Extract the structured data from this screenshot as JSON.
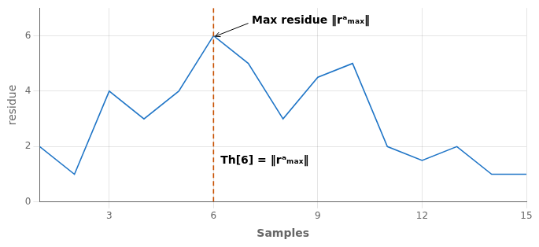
{
  "chart_data": {
    "type": "line",
    "x_label": "Samples",
    "y_label": "residue",
    "x": [
      1,
      2,
      3,
      4,
      5,
      6,
      7,
      8,
      9,
      10,
      11,
      12,
      13,
      14,
      15
    ],
    "values": [
      2,
      1,
      4,
      3,
      4,
      6,
      5,
      3,
      4.5,
      5,
      2,
      1.5,
      2,
      1,
      1
    ],
    "color": "#2176c7",
    "xlim": [
      1,
      15
    ],
    "ylim": [
      0,
      7
    ],
    "xticks": [
      3,
      6,
      9,
      12,
      15
    ],
    "yticks": [
      0,
      2,
      4,
      6
    ],
    "grid": true,
    "vlines": [
      {
        "x": 6,
        "color": "#c85000",
        "line_style": "dashed"
      }
    ],
    "annotations": [
      {
        "text": "Max residue ‖rᵃₘₐₓ‖",
        "x": 7.1,
        "y": 6.55,
        "arrow_from": [
          7.0,
          6.45
        ],
        "arrow_to": [
          6.05,
          5.98
        ]
      },
      {
        "text": "Th[6] = ‖rᵃₘₐₓ‖",
        "x": 6.2,
        "y": 1.5
      }
    ]
  }
}
